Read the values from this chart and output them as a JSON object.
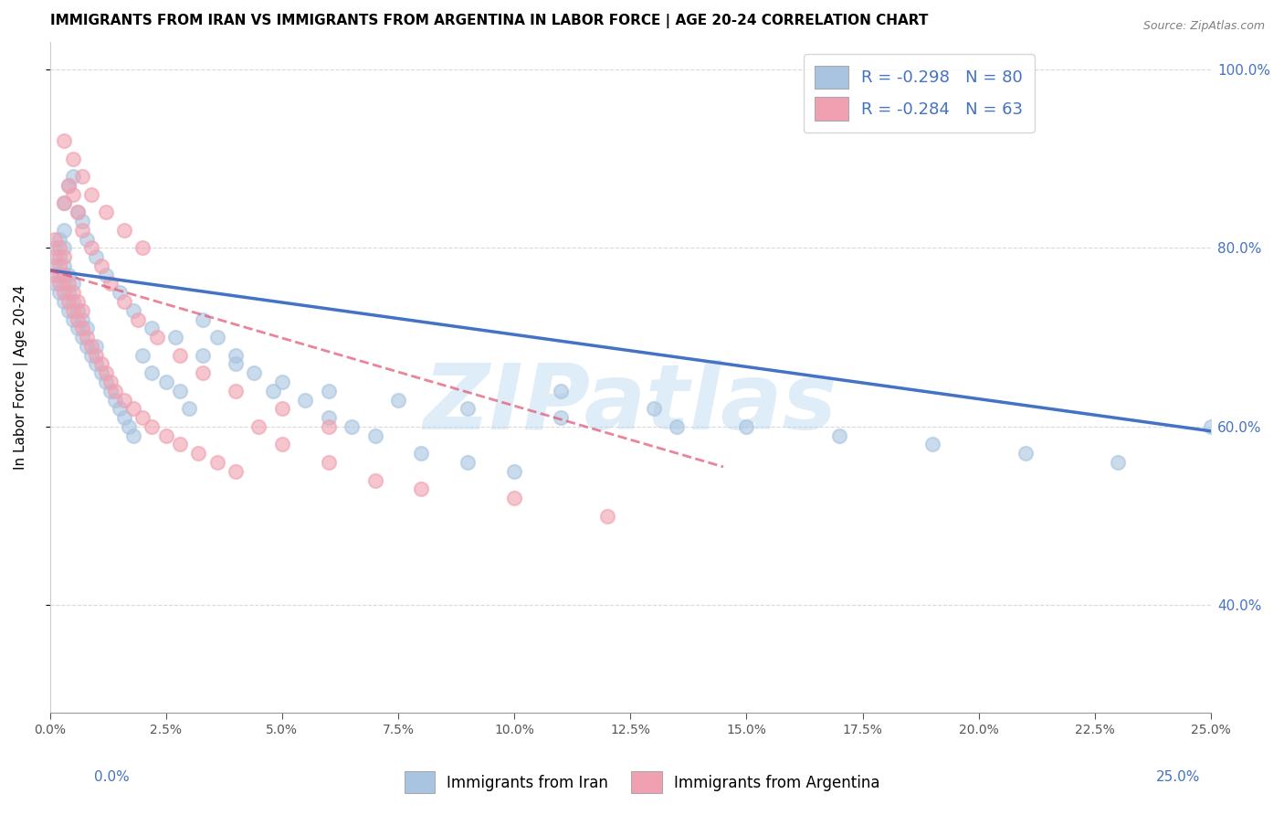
{
  "title": "IMMIGRANTS FROM IRAN VS IMMIGRANTS FROM ARGENTINA IN LABOR FORCE | AGE 20-24 CORRELATION CHART",
  "source": "Source: ZipAtlas.com",
  "ylabel": "In Labor Force | Age 20-24",
  "legend_iran": "R = -0.298   N = 80",
  "legend_argentina": "R = -0.284   N = 63",
  "legend_label_iran": "Immigrants from Iran",
  "legend_label_argentina": "Immigrants from Argentina",
  "iran_color": "#a8c4e0",
  "argentina_color": "#f0a0b0",
  "iran_line_color": "#4472c4",
  "argentina_line_color": "#e05070",
  "watermark": "ZIPatlas",
  "iran_scatter_x": [
    0.001,
    0.001,
    0.001,
    0.002,
    0.002,
    0.002,
    0.002,
    0.003,
    0.003,
    0.003,
    0.003,
    0.003,
    0.004,
    0.004,
    0.004,
    0.005,
    0.005,
    0.005,
    0.006,
    0.006,
    0.007,
    0.007,
    0.008,
    0.008,
    0.009,
    0.01,
    0.01,
    0.011,
    0.012,
    0.013,
    0.014,
    0.015,
    0.016,
    0.017,
    0.018,
    0.02,
    0.022,
    0.025,
    0.028,
    0.03,
    0.033,
    0.036,
    0.04,
    0.044,
    0.048,
    0.055,
    0.06,
    0.065,
    0.07,
    0.08,
    0.09,
    0.1,
    0.11,
    0.13,
    0.15,
    0.17,
    0.19,
    0.21,
    0.23,
    0.25,
    0.003,
    0.004,
    0.005,
    0.006,
    0.007,
    0.008,
    0.01,
    0.012,
    0.015,
    0.018,
    0.022,
    0.027,
    0.033,
    0.04,
    0.05,
    0.06,
    0.075,
    0.09,
    0.11,
    0.135
  ],
  "iran_scatter_y": [
    0.78,
    0.8,
    0.76,
    0.77,
    0.79,
    0.75,
    0.81,
    0.74,
    0.76,
    0.78,
    0.8,
    0.82,
    0.73,
    0.75,
    0.77,
    0.72,
    0.74,
    0.76,
    0.71,
    0.73,
    0.7,
    0.72,
    0.69,
    0.71,
    0.68,
    0.67,
    0.69,
    0.66,
    0.65,
    0.64,
    0.63,
    0.62,
    0.61,
    0.6,
    0.59,
    0.68,
    0.66,
    0.65,
    0.64,
    0.62,
    0.72,
    0.7,
    0.68,
    0.66,
    0.64,
    0.63,
    0.61,
    0.6,
    0.59,
    0.57,
    0.56,
    0.55,
    0.64,
    0.62,
    0.6,
    0.59,
    0.58,
    0.57,
    0.56,
    0.6,
    0.85,
    0.87,
    0.88,
    0.84,
    0.83,
    0.81,
    0.79,
    0.77,
    0.75,
    0.73,
    0.71,
    0.7,
    0.68,
    0.67,
    0.65,
    0.64,
    0.63,
    0.62,
    0.61,
    0.6
  ],
  "argentina_scatter_x": [
    0.001,
    0.001,
    0.001,
    0.002,
    0.002,
    0.002,
    0.003,
    0.003,
    0.003,
    0.004,
    0.004,
    0.005,
    0.005,
    0.006,
    0.006,
    0.007,
    0.007,
    0.008,
    0.009,
    0.01,
    0.011,
    0.012,
    0.013,
    0.014,
    0.016,
    0.018,
    0.02,
    0.022,
    0.025,
    0.028,
    0.032,
    0.036,
    0.04,
    0.045,
    0.05,
    0.06,
    0.07,
    0.08,
    0.1,
    0.12,
    0.003,
    0.004,
    0.005,
    0.006,
    0.007,
    0.009,
    0.011,
    0.013,
    0.016,
    0.019,
    0.023,
    0.028,
    0.033,
    0.04,
    0.05,
    0.06,
    0.003,
    0.005,
    0.007,
    0.009,
    0.012,
    0.016,
    0.02
  ],
  "argentina_scatter_y": [
    0.77,
    0.79,
    0.81,
    0.76,
    0.78,
    0.8,
    0.75,
    0.77,
    0.79,
    0.74,
    0.76,
    0.73,
    0.75,
    0.72,
    0.74,
    0.71,
    0.73,
    0.7,
    0.69,
    0.68,
    0.67,
    0.66,
    0.65,
    0.64,
    0.63,
    0.62,
    0.61,
    0.6,
    0.59,
    0.58,
    0.57,
    0.56,
    0.55,
    0.6,
    0.58,
    0.56,
    0.54,
    0.53,
    0.52,
    0.5,
    0.85,
    0.87,
    0.86,
    0.84,
    0.82,
    0.8,
    0.78,
    0.76,
    0.74,
    0.72,
    0.7,
    0.68,
    0.66,
    0.64,
    0.62,
    0.6,
    0.92,
    0.9,
    0.88,
    0.86,
    0.84,
    0.82,
    0.8
  ],
  "xlim": [
    0.0,
    0.25
  ],
  "ylim": [
    0.28,
    1.03
  ],
  "yticks": [
    0.4,
    0.6,
    0.8,
    1.0
  ],
  "iran_trendline_x": [
    0.0,
    0.25
  ],
  "iran_trendline_y": [
    0.775,
    0.595
  ],
  "argentina_trendline_x": [
    0.0,
    0.145
  ],
  "argentina_trendline_y": [
    0.775,
    0.555
  ]
}
